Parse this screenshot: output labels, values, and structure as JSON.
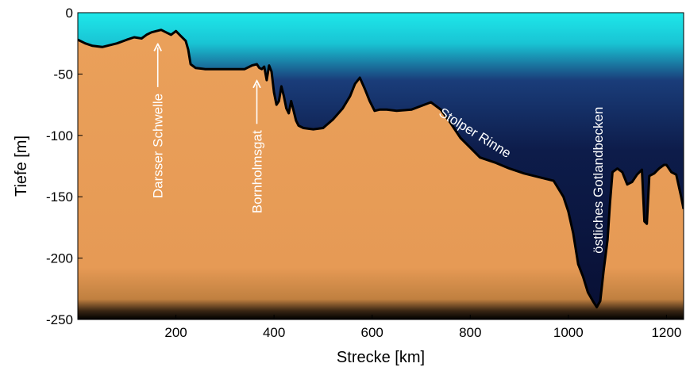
{
  "chart_data": {
    "type": "area",
    "xlabel": "Strecke [km]",
    "ylabel": "Tiefe [m]",
    "xlim": [
      0,
      1235
    ],
    "ylim": [
      -250,
      0
    ],
    "x_ticks": [
      200,
      400,
      600,
      800,
      1000,
      1200
    ],
    "y_ticks": [
      0,
      -50,
      -100,
      -150,
      -200,
      -250
    ],
    "series": [
      {
        "x": [
          0,
          15,
          30,
          50,
          80,
          100,
          115,
          130,
          140,
          150,
          160,
          170,
          180,
          190,
          200,
          210,
          220,
          225,
          230,
          240,
          260,
          300,
          340,
          355,
          365,
          370,
          375,
          380,
          385,
          390,
          395,
          400,
          405,
          410,
          415,
          420,
          425,
          430,
          435,
          440,
          445,
          450,
          455,
          460,
          480,
          500,
          520,
          540,
          555,
          565,
          575,
          585,
          595,
          605,
          615,
          630,
          650,
          680,
          700,
          720,
          740,
          760,
          780,
          800,
          820,
          850,
          880,
          910,
          940,
          970,
          990,
          1000,
          1010,
          1020,
          1030,
          1040,
          1050,
          1058,
          1065,
          1072,
          1080,
          1085,
          1090,
          1100,
          1110,
          1120,
          1130,
          1140,
          1145,
          1150,
          1155,
          1160,
          1165,
          1175,
          1185,
          1195,
          1200,
          1210,
          1220,
          1230,
          1235
        ],
        "y": [
          -22,
          -25,
          -27,
          -28,
          -25,
          -22,
          -20,
          -21,
          -18,
          -16,
          -15,
          -14,
          -16,
          -18,
          -15,
          -19,
          -23,
          -30,
          -42,
          -45,
          -46,
          -46,
          -46,
          -43,
          -42,
          -45,
          -46,
          -44,
          -55,
          -43,
          -48,
          -65,
          -75,
          -72,
          -60,
          -68,
          -78,
          -82,
          -72,
          -80,
          -88,
          -92,
          -93,
          -94,
          -95,
          -94,
          -87,
          -78,
          -68,
          -58,
          -53,
          -62,
          -72,
          -80,
          -79,
          -79,
          -80,
          -79,
          -76,
          -73,
          -79,
          -90,
          -102,
          -110,
          -118,
          -122,
          -127,
          -131,
          -134,
          -137,
          -150,
          -162,
          -180,
          -205,
          -215,
          -228,
          -235,
          -240,
          -235,
          -210,
          -185,
          -155,
          -130,
          -127,
          -130,
          -140,
          -138,
          -132,
          -130,
          -128,
          -170,
          -172,
          -133,
          -131,
          -127,
          -124,
          -124,
          -130,
          -132,
          -150,
          -160
        ]
      }
    ],
    "annotations": [
      {
        "text": "Darsser Schwelle",
        "x": 163,
        "y": -18,
        "rotation": "vertical",
        "arrow": true
      },
      {
        "text": "Bornholmsgat",
        "x": 365,
        "y": -48,
        "rotation": "vertical",
        "arrow": true
      },
      {
        "text": "Stolper Rinne",
        "x": 805,
        "y": -101,
        "rotation": "diagonal",
        "arrow": false
      },
      {
        "text": "östliches Gotlandbecken",
        "x": 1060,
        "y": -130,
        "rotation": "vertical",
        "arrow": false
      }
    ],
    "colors": {
      "water_top": "#1ee8ea",
      "water_deep": "#080f33",
      "sediment": "#e69a55",
      "sediment_deep": "#c08040",
      "seabed_line": "#000000",
      "annotation": "#ffffff"
    },
    "grid": false,
    "legend": "none"
  }
}
